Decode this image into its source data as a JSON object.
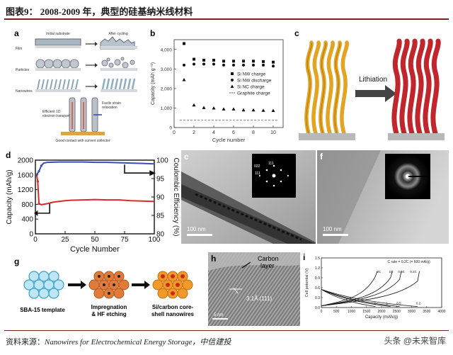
{
  "figure_title": "图表9： 2008-2009 年，典型的硅基纳米线材料",
  "source_prefix": "资料来源：",
  "source_text": "Nanowires for Electrochemical Energy Storage，中信建投",
  "watermark": "头条 @未来智库",
  "panel_labels": [
    "a",
    "b",
    "c",
    "d",
    "e",
    "f",
    "g",
    "h",
    "i"
  ],
  "panel_a": {
    "initial_substrate": "Initial substrate",
    "after_cycling": "After cycling",
    "film": "Film",
    "particles": "Particles",
    "nanowires": "Nanowires",
    "efficient_1d": "Efficient 1D",
    "electron_transport": "electron transport",
    "facile_strain": "Facile strain",
    "relaxation": "relaxation",
    "good_contact": "Good contact with current collector"
  },
  "panel_c": {
    "arrow_label": "Lithiation"
  },
  "panel_e": {
    "scale": "100 nm",
    "idx1": "022",
    "idx2": "111",
    "idx3": "111"
  },
  "panel_f": {
    "scale": "100 nm"
  },
  "panel_g": {
    "step1": "SBA-15 template",
    "step2a": "Impregnation",
    "step2b": "& HF etching",
    "step3a": "Si/carbon core-",
    "step3b": "shell nanowires"
  },
  "panel_h": {
    "carbon1": "Carbon",
    "carbon2": "layer",
    "lattice": "3.1Å (111)",
    "scale": "5 nm"
  },
  "chart_data": [
    {
      "panel": "b",
      "type": "scatter",
      "xlabel": "Cycle number",
      "ylabel": "Capacity (mAh g⁻¹)",
      "xlim": [
        0,
        11
      ],
      "ylim": [
        0,
        4500
      ],
      "xticks": [
        0,
        2,
        4,
        6,
        8,
        10
      ],
      "yticks": [
        0,
        1000,
        2000,
        3000,
        4000
      ],
      "ytick_labels": [
        "0",
        "1,000",
        "2,000",
        "3,000",
        "4,000"
      ],
      "legend_position": "middle-right",
      "series": [
        {
          "name": "Si NW charge",
          "marker": "square",
          "x": [
            1,
            2,
            3,
            4,
            5,
            6,
            7,
            8,
            9,
            10
          ],
          "values": [
            4300,
            3500,
            3450,
            3450,
            3400,
            3400,
            3400,
            3400,
            3380,
            3350
          ]
        },
        {
          "name": "Si NW discharge",
          "marker": "circle",
          "x": [
            1,
            2,
            3,
            4,
            5,
            6,
            7,
            8,
            9,
            10
          ],
          "values": [
            3200,
            3250,
            3250,
            3250,
            3200,
            3200,
            3200,
            3200,
            3200,
            3150
          ]
        },
        {
          "name": "Si NC charge",
          "marker": "triangle",
          "x": [
            1,
            2,
            3,
            4,
            5,
            6,
            7,
            8,
            9,
            10
          ],
          "values": [
            2450,
            1150,
            1020,
            1000,
            950,
            950,
            900,
            900,
            880,
            870
          ]
        },
        {
          "name": "Graphite charge",
          "marker": "dash",
          "constant": 372
        }
      ]
    },
    {
      "panel": "d",
      "type": "line",
      "xlabel": "Cycle Number",
      "ylabel": "Capacity (mAh/g)",
      "y2label": "Coulombic Efficiency (%)",
      "xlim": [
        0,
        100
      ],
      "ylim": [
        0,
        2000
      ],
      "y2lim": [
        80,
        100
      ],
      "xticks": [
        0,
        25,
        50,
        75,
        100
      ],
      "yticks": [
        0,
        400,
        800,
        1200,
        1600,
        2000
      ],
      "y2ticks": [
        80,
        85,
        90,
        95,
        100
      ],
      "series": [
        {
          "name": "",
          "color": "#d62c2c",
          "x": [
            1,
            2,
            3,
            5,
            10,
            15,
            20,
            25,
            30,
            40,
            50,
            60,
            70,
            75,
            80,
            90,
            100
          ],
          "values": [
            1600,
            1420,
            820,
            790,
            820,
            860,
            880,
            900,
            910,
            920,
            930,
            920,
            920,
            910,
            900,
            890,
            880
          ]
        },
        {
          "name": "",
          "axis": "y2",
          "color": "#3a4db8",
          "x": [
            1,
            3,
            5,
            7,
            10,
            20,
            30,
            40,
            50,
            60,
            70,
            80,
            90,
            100
          ],
          "values": [
            96,
            97,
            98.5,
            99.2,
            99.4,
            99.5,
            99.5,
            99.5,
            99.4,
            99.4,
            99.3,
            99.2,
            99.1,
            99.0
          ]
        }
      ]
    },
    {
      "panel": "i",
      "type": "line",
      "xlabel": "Capacity (mAh/g)",
      "ylabel": "Cell potential (V)",
      "xlim": [
        0,
        4000
      ],
      "ylim": [
        0,
        1.5
      ],
      "xticks": [
        0,
        500,
        1000,
        1500,
        2000,
        2500,
        3000,
        3500,
        4000
      ],
      "yticks": [
        0.0,
        0.3,
        0.6,
        0.9,
        1.2,
        1.5
      ],
      "annotation": "C rate = 0.2C (= 600 mA/g)",
      "curve_labels": [
        "2C",
        "1C",
        "0.5C",
        "0.2C",
        "2",
        "1",
        "0.5",
        "0.2"
      ]
    }
  ]
}
